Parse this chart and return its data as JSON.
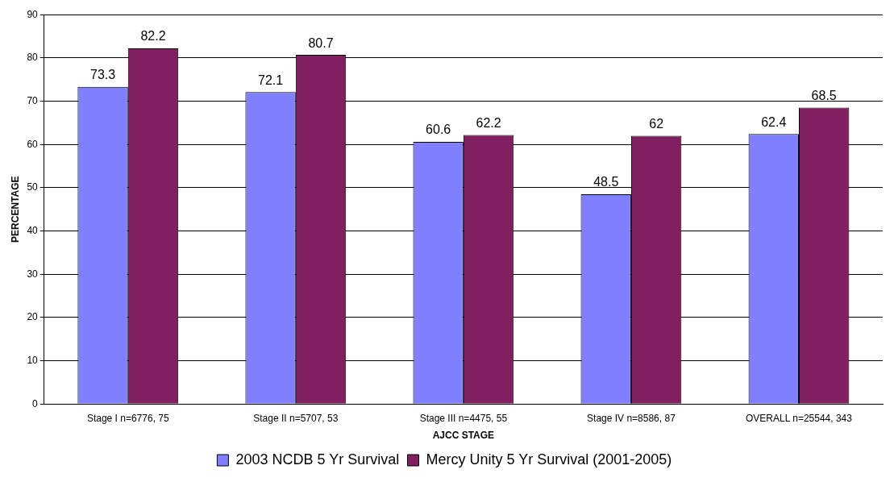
{
  "chart_data": {
    "type": "bar",
    "xlabel": "AJCC STAGE",
    "ylabel": "PERCENTAGE",
    "categories": [
      "Stage I n=6776, 75",
      "Stage II n=5707, 53",
      "Stage III n=4475, 55",
      "Stage IV n=8586, 87",
      "OVERALL n=25544, 343"
    ],
    "series": [
      {
        "name": "2003 NCDB 5 Yr Survival",
        "color": "#8080ff",
        "values": [
          73.3,
          72.1,
          60.6,
          48.5,
          62.4
        ]
      },
      {
        "name": "Mercy Unity 5 Yr Survival (2001-2005)",
        "color": "#802060",
        "values": [
          82.2,
          80.7,
          62.2,
          62,
          68.5
        ]
      }
    ],
    "ylim": [
      0,
      90
    ],
    "yticks": [
      0,
      10,
      20,
      30,
      40,
      50,
      60,
      70,
      80,
      90
    ],
    "grid": "y",
    "legend": "bottom",
    "data_labels": true
  }
}
